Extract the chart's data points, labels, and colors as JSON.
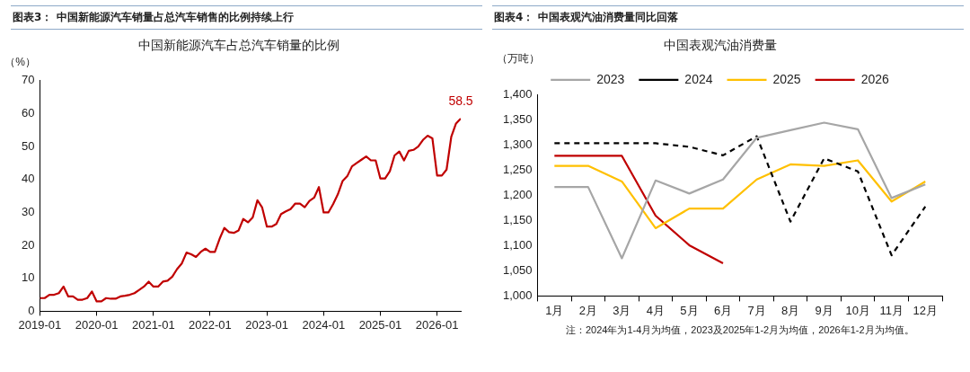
{
  "chart_data": [
    {
      "type": "line",
      "title": "图表3：  中国新能源汽车销量占总汽车销售的比例持续上行",
      "subtitle": "中国新能源汽车占总汽车销量的比例",
      "ylabel": "（%）",
      "x": [
        "2019-01",
        "2019-02",
        "2019-03",
        "2019-04",
        "2019-05",
        "2019-06",
        "2019-07",
        "2019-08",
        "2019-09",
        "2019-10",
        "2019-11",
        "2019-12",
        "2020-01",
        "2020-02",
        "2020-03",
        "2020-04",
        "2020-05",
        "2020-06",
        "2020-07",
        "2020-08",
        "2020-09",
        "2020-10",
        "2020-11",
        "2020-12",
        "2021-01",
        "2021-02",
        "2021-03",
        "2021-04",
        "2021-05",
        "2021-06",
        "2021-07",
        "2021-08",
        "2021-09",
        "2021-10",
        "2021-11",
        "2021-12",
        "2022-01",
        "2022-02",
        "2022-03",
        "2022-04",
        "2022-05",
        "2022-06",
        "2022-07",
        "2022-08",
        "2022-09",
        "2022-10",
        "2022-11",
        "2022-12",
        "2023-01",
        "2023-02",
        "2023-03",
        "2023-04",
        "2023-05",
        "2023-06",
        "2023-07",
        "2023-08",
        "2023-09",
        "2023-10",
        "2023-11",
        "2023-12",
        "2024-01",
        "2024-02",
        "2024-03",
        "2024-04",
        "2024-05",
        "2024-06",
        "2024-07",
        "2024-08",
        "2024-09",
        "2024-10",
        "2024-11",
        "2024-12",
        "2025-01",
        "2025-02",
        "2025-03",
        "2025-04",
        "2025-05",
        "2025-06",
        "2025-07",
        "2025-08",
        "2025-09",
        "2025-10",
        "2025-11",
        "2025-12",
        "2026-01",
        "2026-02",
        "2026-03",
        "2026-04",
        "2026-05",
        "2026-06"
      ],
      "series": [
        {
          "color": "#c00000",
          "values": [
            4,
            4,
            5,
            5,
            5.5,
            7.5,
            4.5,
            4.5,
            3.5,
            3.5,
            4,
            6,
            3,
            3,
            4,
            3.8,
            3.8,
            4.5,
            4.7,
            5,
            5.5,
            6.5,
            7.5,
            9,
            7.5,
            7.5,
            9,
            9.3,
            10.5,
            12.8,
            14.5,
            17.8,
            17.3,
            16.5,
            18,
            19,
            18,
            18,
            22,
            25.3,
            24,
            23.8,
            24.5,
            28,
            27,
            28.5,
            33.7,
            31.5,
            25.7,
            25.7,
            26.5,
            29.5,
            30.3,
            31,
            32.7,
            32.7,
            31.6,
            33.5,
            34.5,
            37.7,
            30,
            30,
            32.5,
            35.5,
            39.5,
            41,
            44,
            45,
            46,
            47,
            45.8,
            45.8,
            40.3,
            40.3,
            42.5,
            47.3,
            48.5,
            45.8,
            48.7,
            49,
            50,
            52,
            53.3,
            52.5,
            41.2,
            41.2,
            43,
            53,
            57,
            58.5
          ],
          "value_labels": [
            null,
            null,
            null,
            null,
            null,
            null,
            null,
            null,
            null,
            null,
            null,
            null,
            null,
            null,
            null,
            null,
            null,
            null,
            null,
            null,
            null,
            null,
            null,
            null,
            null,
            null,
            null,
            null,
            null,
            null,
            null,
            null,
            null,
            null,
            null,
            null,
            null,
            null,
            null,
            null,
            null,
            null,
            null,
            null,
            null,
            null,
            null,
            null,
            null,
            null,
            null,
            null,
            null,
            null,
            null,
            null,
            null,
            null,
            null,
            null,
            null,
            null,
            null,
            null,
            null,
            null,
            null,
            null,
            null,
            null,
            null,
            null,
            null,
            null,
            null,
            null,
            null,
            null,
            null,
            null,
            null,
            null,
            null,
            null,
            null,
            null,
            null,
            null,
            null,
            "58.5"
          ]
        }
      ],
      "xlim": [
        "2019-01",
        "2026-06"
      ],
      "xticks": [
        "2019-01",
        "2020-01",
        "2021-01",
        "2022-01",
        "2023-01",
        "2024-01",
        "2025-01",
        "2026-01"
      ],
      "ylim": [
        0,
        70
      ],
      "yticks": [
        0,
        10,
        20,
        30,
        40,
        50,
        60,
        70
      ],
      "grid": false,
      "legend": false,
      "marker": "none"
    },
    {
      "type": "line",
      "title": "图表4：  中国表观汽油消费量同比回落",
      "subtitle": "中国表观汽油消费量",
      "ylabel": "（万吨）",
      "categories": [
        "1月",
        "2月",
        "3月",
        "4月",
        "5月",
        "6月",
        "7月",
        "8月",
        "9月",
        "10月",
        "11月",
        "12月"
      ],
      "series": [
        {
          "name": "2023",
          "color": "#a6a6a6",
          "line_style": "solid",
          "values": [
            1217,
            1217,
            1075,
            1230,
            1204,
            1232,
            1315,
            1330,
            1345,
            1332,
            1195,
            1222
          ]
        },
        {
          "name": "2024",
          "color": "#000000",
          "line_style": "dashed",
          "values": [
            1304,
            1304,
            1304,
            1304,
            1297,
            1280,
            1318,
            1148,
            1274,
            1248,
            1081,
            1178
          ]
        },
        {
          "name": "2025",
          "color": "#ffc000",
          "line_style": "solid",
          "values": [
            1259,
            1259,
            1228,
            1135,
            1174,
            1174,
            1232,
            1262,
            1259,
            1270,
            1188,
            1228
          ]
        },
        {
          "name": "2026",
          "color": "#c00000",
          "line_style": "solid",
          "values": [
            1279,
            1279,
            1279,
            1160,
            1101,
            1065,
            null,
            null,
            null,
            null,
            null,
            null
          ]
        }
      ],
      "ylim": [
        1000,
        1400
      ],
      "yticks": [
        {
          "value": 1000,
          "label": "1,000"
        },
        {
          "value": 1050,
          "label": "1,050"
        },
        {
          "value": 1100,
          "label": "1,100"
        },
        {
          "value": 1150,
          "label": "1,150"
        },
        {
          "value": 1200,
          "label": "1,200"
        },
        {
          "value": 1250,
          "label": "1,250"
        },
        {
          "value": 1300,
          "label": "1,300"
        },
        {
          "value": 1350,
          "label": "1,350"
        },
        {
          "value": 1400,
          "label": "1,400"
        }
      ],
      "grid": false,
      "legend": "top",
      "marker": "none",
      "annotations": [
        "注：2024年为1-4月为均值，2023及2025年1-2月为均值，2026年1-2月为均值。"
      ]
    }
  ]
}
